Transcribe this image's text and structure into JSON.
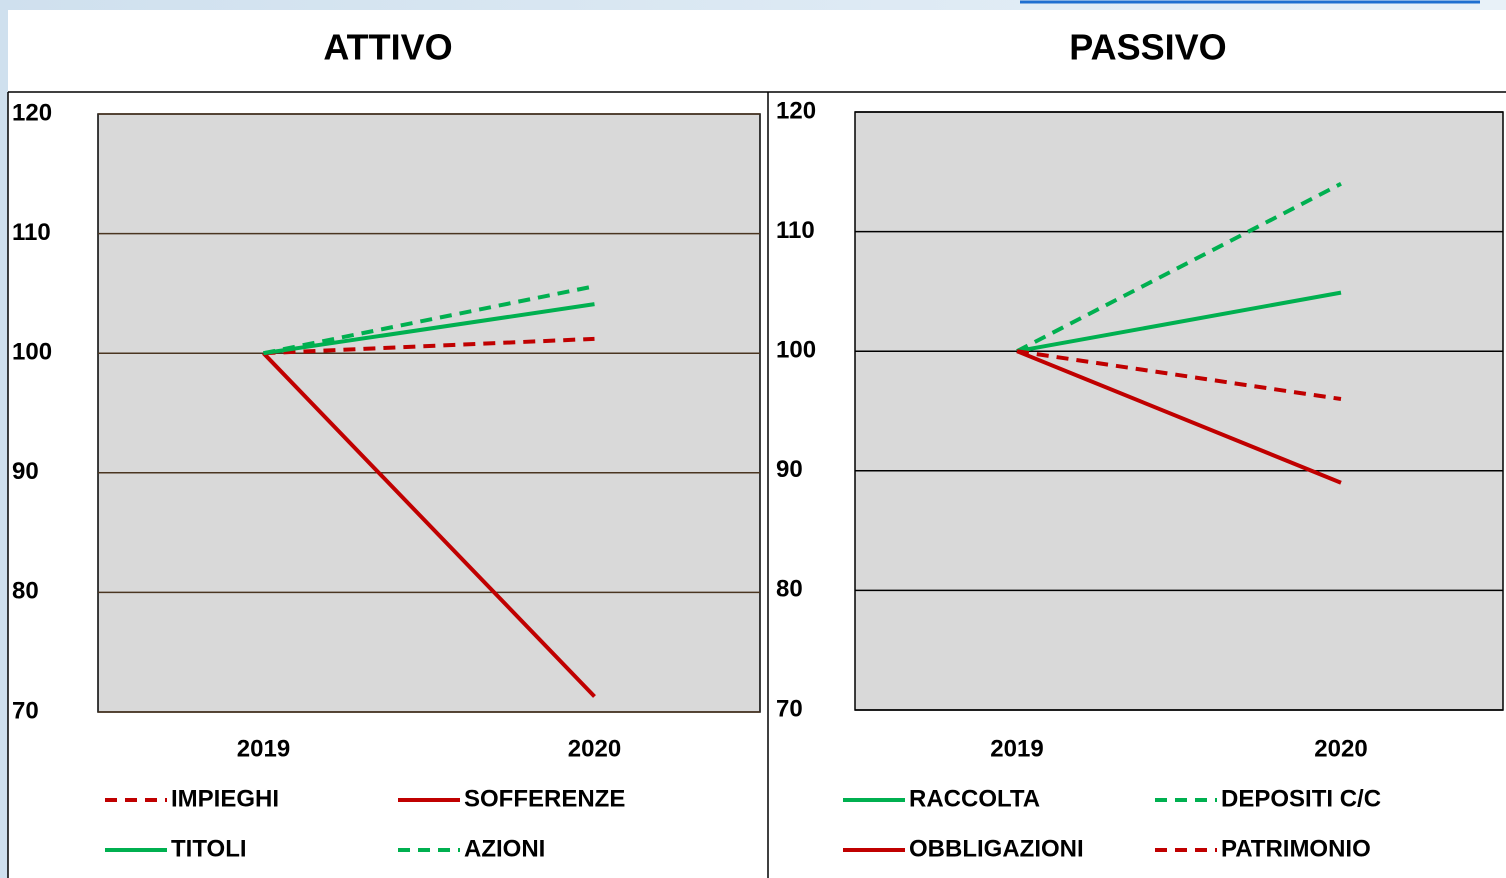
{
  "chart_data": [
    {
      "type": "line",
      "title": "ATTIVO",
      "categories": [
        "2019",
        "2020"
      ],
      "series": [
        {
          "name": "IMPIEGHI",
          "color": "#c00000",
          "style": "dashed",
          "values": [
            100,
            101.2
          ]
        },
        {
          "name": "SOFFERENZE",
          "color": "#c00000",
          "style": "solid",
          "values": [
            100,
            71.3
          ]
        },
        {
          "name": "TITOLI",
          "color": "#00b050",
          "style": "solid",
          "values": [
            100,
            104.1
          ]
        },
        {
          "name": "AZIONI",
          "color": "#00b050",
          "style": "dashed",
          "values": [
            100,
            105.6
          ]
        }
      ],
      "ylim": [
        70,
        120
      ],
      "yticks": [
        70,
        80,
        90,
        100,
        110,
        120
      ],
      "grid": true,
      "grid_color": "#4a3520"
    },
    {
      "type": "line",
      "title": "PASSIVO",
      "categories": [
        "2019",
        "2020"
      ],
      "series": [
        {
          "name": "RACCOLTA",
          "color": "#00b050",
          "style": "solid",
          "values": [
            100,
            104.9
          ]
        },
        {
          "name": "DEPOSITI C/C",
          "color": "#00b050",
          "style": "dashed",
          "values": [
            100,
            114.0
          ]
        },
        {
          "name": "OBBLIGAZIONI",
          "color": "#c00000",
          "style": "solid",
          "values": [
            100,
            89.0
          ]
        },
        {
          "name": "PATRIMONIO",
          "color": "#c00000",
          "style": "dashed",
          "values": [
            100,
            96.0
          ]
        }
      ],
      "ylim": [
        70,
        120
      ],
      "yticks": [
        70,
        80,
        90,
        100,
        110,
        120
      ],
      "grid": true,
      "grid_color": "#000000"
    }
  ]
}
